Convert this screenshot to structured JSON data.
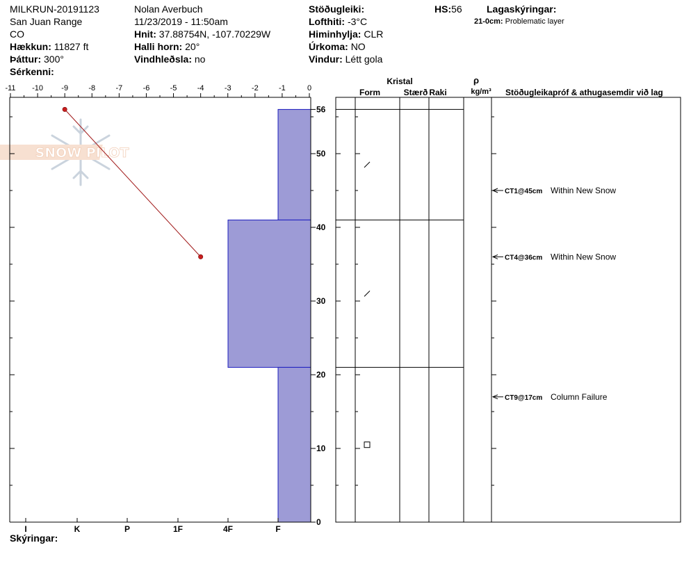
{
  "header": {
    "col1": {
      "id": "MILKRUN-20191123",
      "range": "San Juan Range",
      "state": "CO",
      "elev_label": "Hækkun:",
      "elev_value": "11827 ft",
      "aspect_label": "Þáttur:",
      "aspect_value": "300°",
      "features_label": "Sérkenni:"
    },
    "col2": {
      "observer": "Nolan Averbuch",
      "datetime": "11/23/2019 - 11:50am",
      "coords_label": "Hnit:",
      "coords_value": "37.88754N, -107.70229W",
      "slope_label": "Halli horn:",
      "slope_value": "20°",
      "wind_load_label": "Vindhleðsla:",
      "wind_load_value": "no"
    },
    "col3": {
      "stability_label": "Stöðugleiki:",
      "airtemp_label": "Lofthiti:",
      "airtemp_value": "-3°C",
      "sky_label": "Himinhylja:",
      "sky_value": "CLR",
      "precip_label": "Úrkoma:",
      "precip_value": "NO",
      "wind_label": "Vindur:",
      "wind_value": "Létt gola"
    },
    "hs_label": "HS:",
    "hs_value": "56",
    "layer_notes_label": "Lagaskýringar:",
    "layer_note": {
      "range": "21-0cm:",
      "text": "Problematic layer"
    }
  },
  "logo_text": "SNOW PILOT",
  "notes_label": "Skýringar:",
  "chart_data": {
    "type": "snow-profile",
    "temperature_axis": {
      "ticks": [
        -11,
        -10,
        -9,
        -8,
        -7,
        -6,
        -5,
        -4,
        -3,
        -2,
        -1,
        0
      ],
      "range": [
        -11,
        0
      ],
      "unit": "°C"
    },
    "depth_axis": {
      "ticks": [
        0,
        10,
        20,
        30,
        40,
        50,
        56
      ],
      "range": [
        0,
        56
      ],
      "unit": "cm"
    },
    "hardness_axis": {
      "labels": [
        "I",
        "K",
        "P",
        "1F",
        "4F",
        "F"
      ]
    },
    "hardness_layers": [
      {
        "top": 56,
        "bottom": 41,
        "hardness": "F"
      },
      {
        "top": 41,
        "bottom": 21,
        "hardness": "4F"
      },
      {
        "top": 21,
        "bottom": 0,
        "hardness": "F"
      }
    ],
    "temperature_profile": [
      {
        "depth": 56,
        "temp": -9
      },
      {
        "depth": 36,
        "temp": -4
      }
    ],
    "crystal_header": {
      "crystal": "Kristal",
      "form": "Form",
      "size": "Stærð",
      "moisture": "Raki",
      "density_symbol": "ρ",
      "density_unit": "kg/m³",
      "tests": "Stöðugleikapróf & athugasemdir við lag"
    },
    "layer_boundaries": [
      56,
      41,
      21
    ],
    "grain_forms": [
      {
        "depth": 48.5,
        "symbol": "slash"
      },
      {
        "depth": 31,
        "symbol": "slash"
      },
      {
        "depth": 10.5,
        "symbol": "square"
      }
    ],
    "stability_tests": [
      {
        "code": "CT1",
        "depth_label": "@45cm",
        "depth": 45,
        "comment": "Within New Snow"
      },
      {
        "code": "CT4",
        "depth_label": "@36cm",
        "depth": 36,
        "comment": "Within New Snow"
      },
      {
        "code": "CT9",
        "depth_label": "@17cm",
        "depth": 17,
        "comment": "Column Failure"
      }
    ]
  }
}
